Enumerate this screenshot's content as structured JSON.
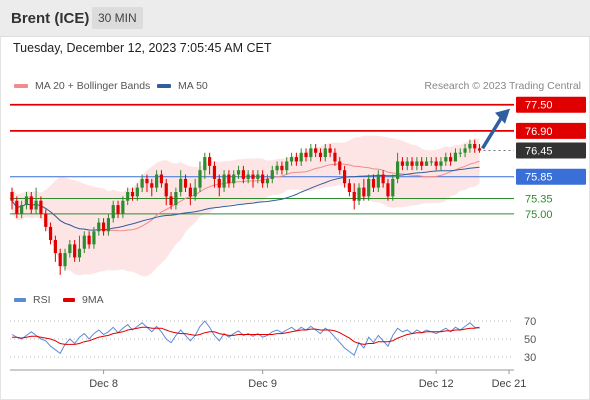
{
  "header": {
    "title": "Brent (ICE)",
    "timeframe": "30 MIN"
  },
  "timestamp": "Tuesday, December 12, 2023 7:05:45 AM CET",
  "legend": {
    "ma20": {
      "label": "MA 20 + Bollinger Bands",
      "color": "#f28b8b"
    },
    "ma50": {
      "label": "MA 50",
      "color": "#2f5f9e"
    }
  },
  "credit": "Research © 2023 Trading Central",
  "rsi_legend": {
    "rsi": {
      "label": "RSI",
      "color": "#5b8bd8"
    },
    "ma9": {
      "label": "9MA",
      "color": "#e00000"
    }
  },
  "chart_data": [
    {
      "type": "candlestick",
      "ylim": [
        73.3,
        77.7
      ],
      "levels": [
        {
          "value": 77.5,
          "label": "77.50",
          "kind": "resistance",
          "color": "#e00000"
        },
        {
          "value": 76.9,
          "label": "76.90",
          "kind": "resistance",
          "color": "#e00000"
        },
        {
          "value": 76.45,
          "label": "76.45",
          "kind": "current",
          "color": "#333333"
        },
        {
          "value": 75.85,
          "label": "75.85",
          "kind": "pivot",
          "color": "#3a6fd8"
        },
        {
          "value": 75.35,
          "label": "75.35",
          "kind": "support",
          "color": "#2e8b2e"
        },
        {
          "value": 75.0,
          "label": "75.00",
          "kind": "support",
          "color": "#2e8b2e"
        }
      ],
      "candles": [
        [
          75.5,
          75.3,
          75.6,
          75.1
        ],
        [
          75.3,
          75.0,
          75.4,
          74.9
        ],
        [
          75.0,
          75.2,
          75.3,
          74.9
        ],
        [
          75.2,
          75.4,
          75.5,
          75.1
        ],
        [
          75.4,
          75.1,
          75.5,
          75.0
        ],
        [
          75.1,
          75.3,
          75.6,
          75.0
        ],
        [
          75.3,
          75.0,
          75.4,
          74.9
        ],
        [
          75.0,
          74.7,
          75.1,
          74.6
        ],
        [
          74.7,
          74.4,
          74.8,
          74.3
        ],
        [
          74.4,
          74.1,
          74.5,
          73.9
        ],
        [
          74.1,
          73.8,
          74.2,
          73.6
        ],
        [
          73.8,
          74.1,
          74.2,
          73.7
        ],
        [
          74.1,
          74.3,
          74.4,
          74.0
        ],
        [
          74.3,
          74.0,
          74.4,
          73.9
        ],
        [
          74.0,
          74.2,
          74.5,
          73.9
        ],
        [
          74.2,
          74.5,
          74.6,
          74.1
        ],
        [
          74.5,
          74.3,
          74.6,
          74.2
        ],
        [
          74.3,
          74.6,
          74.7,
          74.2
        ],
        [
          74.6,
          74.8,
          74.9,
          74.5
        ],
        [
          74.8,
          74.6,
          74.9,
          74.5
        ],
        [
          74.6,
          74.9,
          75.0,
          74.5
        ],
        [
          74.9,
          75.2,
          75.3,
          74.8
        ],
        [
          75.2,
          75.0,
          75.3,
          74.9
        ],
        [
          75.0,
          75.3,
          75.4,
          74.9
        ],
        [
          75.3,
          75.5,
          75.6,
          75.2
        ],
        [
          75.5,
          75.4,
          75.6,
          75.3
        ],
        [
          75.4,
          75.6,
          75.7,
          75.3
        ],
        [
          75.6,
          75.8,
          75.9,
          75.5
        ],
        [
          75.8,
          75.7,
          75.9,
          75.5
        ],
        [
          75.7,
          75.6,
          75.8,
          75.4
        ],
        [
          75.6,
          75.9,
          76.0,
          75.5
        ],
        [
          75.9,
          75.7,
          76.0,
          75.6
        ],
        [
          75.7,
          75.4,
          75.8,
          75.2
        ],
        [
          75.4,
          75.2,
          75.5,
          75.1
        ],
        [
          75.2,
          75.5,
          75.6,
          75.1
        ],
        [
          75.5,
          75.8,
          76.0,
          75.4
        ],
        [
          75.8,
          75.6,
          75.9,
          75.5
        ],
        [
          75.6,
          75.4,
          75.7,
          75.2
        ],
        [
          75.4,
          75.6,
          75.8,
          75.3
        ],
        [
          75.6,
          76.0,
          76.2,
          75.5
        ],
        [
          76.0,
          76.3,
          76.4,
          75.8
        ],
        [
          76.3,
          76.1,
          76.4,
          75.9
        ],
        [
          76.1,
          75.8,
          76.2,
          75.6
        ],
        [
          75.8,
          75.6,
          75.9,
          75.4
        ],
        [
          75.6,
          75.9,
          76.0,
          75.5
        ],
        [
          75.9,
          75.7,
          76.0,
          75.6
        ],
        [
          75.7,
          75.9,
          76.0,
          75.6
        ],
        [
          75.9,
          76.0,
          76.1,
          75.8
        ],
        [
          76.0,
          75.8,
          76.1,
          75.7
        ],
        [
          75.8,
          75.9,
          76.0,
          75.7
        ],
        [
          75.9,
          75.8,
          76.0,
          75.6
        ],
        [
          75.8,
          75.9,
          76.0,
          75.7
        ],
        [
          75.9,
          75.7,
          76.0,
          75.6
        ],
        [
          75.7,
          75.8,
          75.9,
          75.6
        ],
        [
          75.8,
          76.0,
          76.1,
          75.7
        ],
        [
          76.0,
          76.1,
          76.2,
          75.9
        ],
        [
          76.1,
          76.0,
          76.2,
          75.9
        ],
        [
          76.0,
          76.2,
          76.3,
          75.9
        ],
        [
          76.2,
          76.3,
          76.4,
          76.1
        ],
        [
          76.3,
          76.2,
          76.4,
          76.1
        ],
        [
          76.2,
          76.4,
          76.5,
          76.1
        ],
        [
          76.4,
          76.3,
          76.5,
          76.2
        ],
        [
          76.3,
          76.5,
          76.6,
          76.2
        ],
        [
          76.5,
          76.4,
          76.6,
          76.3
        ],
        [
          76.4,
          76.3,
          76.5,
          76.2
        ],
        [
          76.3,
          76.5,
          76.6,
          76.2
        ],
        [
          76.5,
          76.4,
          76.6,
          76.3
        ],
        [
          76.4,
          76.2,
          76.5,
          76.1
        ],
        [
          76.2,
          76.0,
          76.3,
          75.9
        ],
        [
          76.0,
          75.7,
          76.1,
          75.6
        ],
        [
          75.7,
          75.5,
          75.8,
          75.4
        ],
        [
          75.5,
          75.3,
          75.7,
          75.1
        ],
        [
          75.3,
          75.6,
          75.7,
          75.2
        ],
        [
          75.6,
          75.4,
          75.8,
          75.3
        ],
        [
          75.4,
          75.8,
          75.9,
          75.3
        ],
        [
          75.8,
          75.6,
          75.9,
          75.5
        ],
        [
          75.6,
          75.9,
          76.0,
          75.5
        ],
        [
          75.9,
          75.7,
          76.0,
          75.6
        ],
        [
          75.7,
          75.4,
          75.8,
          75.3
        ],
        [
          75.4,
          75.8,
          75.9,
          75.3
        ],
        [
          75.8,
          76.2,
          76.4,
          75.7
        ],
        [
          76.2,
          76.1,
          76.3,
          76.0
        ],
        [
          76.1,
          76.2,
          76.3,
          76.0
        ],
        [
          76.2,
          76.1,
          76.3,
          76.0
        ],
        [
          76.1,
          76.2,
          76.3,
          76.0
        ],
        [
          76.2,
          76.1,
          76.3,
          76.0
        ],
        [
          76.1,
          76.2,
          76.3,
          76.1
        ],
        [
          76.2,
          76.2,
          76.3,
          76.1
        ],
        [
          76.2,
          76.1,
          76.3,
          76.0
        ],
        [
          76.1,
          76.2,
          76.3,
          76.0
        ],
        [
          76.2,
          76.3,
          76.4,
          76.1
        ],
        [
          76.3,
          76.2,
          76.4,
          76.1
        ],
        [
          76.2,
          76.4,
          76.5,
          76.2
        ],
        [
          76.4,
          76.4,
          76.5,
          76.3
        ],
        [
          76.4,
          76.5,
          76.6,
          76.3
        ],
        [
          76.5,
          76.6,
          76.7,
          76.4
        ],
        [
          76.6,
          76.5,
          76.7,
          76.4
        ],
        [
          76.5,
          76.45,
          76.6,
          76.4
        ]
      ],
      "forecast_arrow": {
        "from": 76.5,
        "to": 77.5
      },
      "x_labels": [
        "Dec 8",
        "Dec 9",
        "Dec 12",
        "Dec 21"
      ]
    },
    {
      "type": "line",
      "name": "RSI",
      "yticks": [
        70,
        50,
        30
      ],
      "ylim": [
        20,
        80
      ],
      "rsi": [
        55,
        52,
        50,
        54,
        58,
        54,
        50,
        48,
        42,
        38,
        34,
        44,
        50,
        45,
        52,
        56,
        50,
        56,
        60,
        55,
        58,
        63,
        57,
        62,
        66,
        60,
        64,
        68,
        63,
        58,
        64,
        58,
        50,
        46,
        54,
        60,
        54,
        48,
        54,
        64,
        70,
        63,
        54,
        48,
        56,
        52,
        56,
        59,
        54,
        56,
        53,
        56,
        52,
        54,
        58,
        60,
        57,
        60,
        63,
        59,
        63,
        60,
        64,
        60,
        56,
        62,
        58,
        52,
        46,
        40,
        36,
        32,
        46,
        40,
        52,
        46,
        54,
        48,
        42,
        54,
        62,
        58,
        60,
        56,
        60,
        57,
        60,
        58,
        56,
        59,
        62,
        58,
        63,
        60,
        64,
        68,
        63,
        62
      ],
      "ma9": [
        52,
        52,
        51,
        52,
        53,
        53,
        52,
        51,
        50,
        48,
        45,
        44,
        44,
        44,
        45,
        47,
        48,
        50,
        52,
        53,
        54,
        56,
        57,
        58,
        60,
        61,
        62,
        63,
        63,
        62,
        62,
        62,
        60,
        58,
        57,
        56,
        56,
        55,
        54,
        55,
        57,
        58,
        58,
        56,
        55,
        54,
        54,
        55,
        55,
        55,
        55,
        55,
        55,
        55,
        55,
        56,
        56,
        57,
        58,
        59,
        60,
        60,
        61,
        61,
        60,
        60,
        60,
        59,
        57,
        54,
        51,
        47,
        45,
        44,
        45,
        45,
        47,
        47,
        47,
        48,
        51,
        53,
        55,
        56,
        57,
        57,
        58,
        58,
        58,
        58,
        59,
        59,
        60,
        60,
        61,
        62,
        62,
        63
      ]
    }
  ]
}
